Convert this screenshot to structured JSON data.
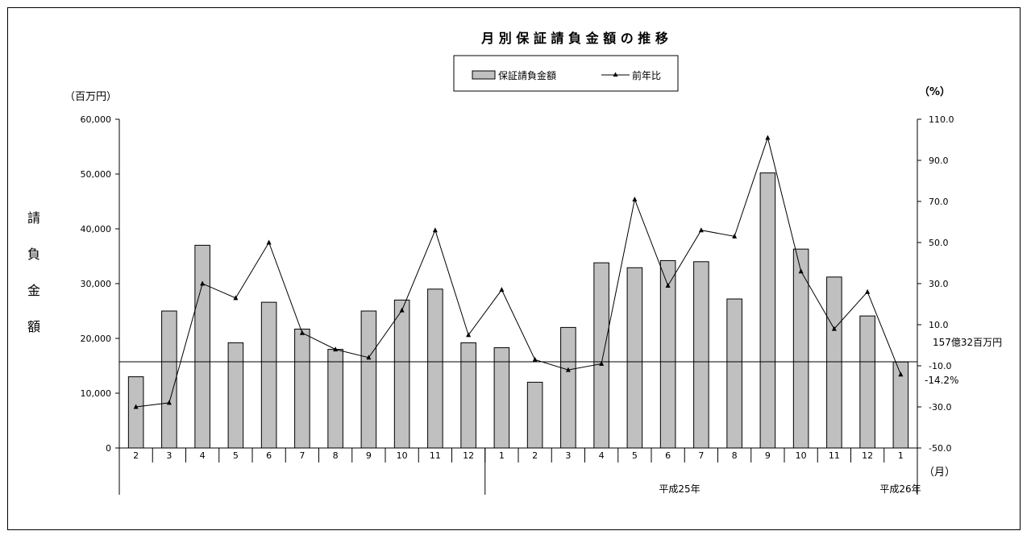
{
  "chart_data": {
    "type": "bar",
    "title": "月 別 保 証 請 負 金 額 の 推 移",
    "legend": {
      "placement": "top-center",
      "bar_label": "保証請負金額",
      "line_label": "前年比"
    },
    "y_unit_left": "（百万円）",
    "y_unit_right": "（%）",
    "ylabel": [
      "請",
      "負",
      "金",
      "額"
    ],
    "x_unit": "（月）",
    "categories": [
      "2",
      "3",
      "4",
      "5",
      "6",
      "7",
      "8",
      "9",
      "10",
      "11",
      "12",
      "1",
      "2",
      "3",
      "4",
      "5",
      "6",
      "7",
      "8",
      "9",
      "10",
      "11",
      "12",
      "1"
    ],
    "year_labels": [
      "平成25年",
      "平成26年"
    ],
    "ylim": [
      0,
      60000
    ],
    "yticks": [
      "0",
      "10,000",
      "20,000",
      "30,000",
      "40,000",
      "50,000",
      "60,000"
    ],
    "y2lim": [
      -50,
      110
    ],
    "y2ticks": [
      "-50.0",
      "-30.0",
      "-10.0",
      "10.0",
      "30.0",
      "50.0",
      "70.0",
      "90.0",
      "110.0"
    ],
    "series": [
      {
        "name": "保証請負金額",
        "kind": "bar",
        "axis": "left",
        "values": [
          13000,
          25000,
          37000,
          19200,
          26600,
          21700,
          18000,
          25000,
          27000,
          29000,
          19200,
          18300,
          12000,
          22000,
          33800,
          32900,
          34200,
          34000,
          27200,
          50200,
          36300,
          31200,
          24100,
          15700
        ]
      },
      {
        "name": "前年比",
        "kind": "line",
        "axis": "right",
        "values": [
          -30,
          -28,
          30,
          23,
          50,
          6,
          -2,
          -6,
          17,
          56,
          5,
          27,
          -7,
          -12,
          -9,
          71,
          29,
          56,
          53,
          101,
          36,
          8,
          26,
          -14.2
        ]
      }
    ],
    "reference_line": {
      "value": 15732,
      "label": "157億32百万円"
    },
    "last_point_label": "-14.2%",
    "grid": false,
    "colors": {
      "bar_fill": "#c0c0c0",
      "bar_stroke": "#000000",
      "line": "#000000"
    }
  }
}
